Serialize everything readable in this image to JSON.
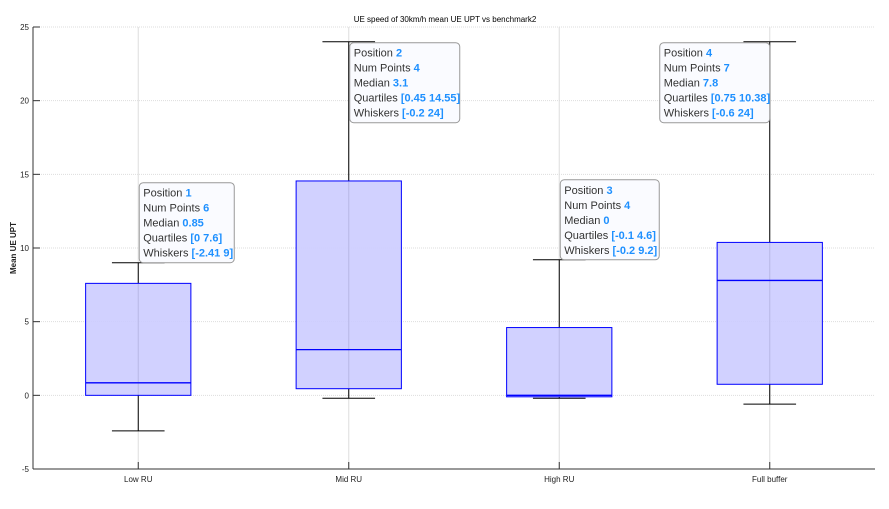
{
  "chart_data": {
    "type": "box",
    "title": "UE speed of 30km/h mean UE UPT vs benchmark2",
    "xlabel": "",
    "ylabel": "Mean UE UPT",
    "ylim": [
      -5,
      25
    ],
    "yticks": [
      "-5",
      "0",
      "5",
      "10",
      "15",
      "20",
      "25"
    ],
    "grid": true,
    "categories": [
      "Low RU",
      "Mid RU",
      "High RU",
      "Full buffer"
    ],
    "boxes": [
      {
        "position": 1,
        "num_points": 6,
        "median": 0.85,
        "q1": 0,
        "q3": 7.6,
        "whisker_low": -2.41,
        "whisker_high": 9,
        "tip": {
          "position": "1",
          "num_points": "6",
          "median": "0.85",
          "quartiles": "[0 7.6]",
          "whiskers": "[-2.41 9]"
        }
      },
      {
        "position": 2,
        "num_points": 4,
        "median": 3.1,
        "q1": 0.45,
        "q3": 14.55,
        "whisker_low": -0.2,
        "whisker_high": 24,
        "tip": {
          "position": "2",
          "num_points": "4",
          "median": "3.1",
          "quartiles": "[0.45 14.55]",
          "whiskers": "[-0.2 24]"
        }
      },
      {
        "position": 3,
        "num_points": 4,
        "median": 0,
        "q1": -0.1,
        "q3": 4.6,
        "whisker_low": -0.2,
        "whisker_high": 9.2,
        "tip": {
          "position": "3",
          "num_points": "4",
          "median": "0",
          "quartiles": "[-0.1 4.6]",
          "whiskers": "[-0.2 9.2]"
        }
      },
      {
        "position": 4,
        "num_points": 7,
        "median": 7.8,
        "q1": 0.75,
        "q3": 10.38,
        "whisker_low": -0.6,
        "whisker_high": 24,
        "tip": {
          "position": "4",
          "num_points": "7",
          "median": "7.8",
          "quartiles": "[0.75 10.38]",
          "whiskers": "[-0.6 24]"
        }
      }
    ],
    "tip_labels": {
      "position": "Position",
      "num_points": "Num Points",
      "median": "Median",
      "quartiles": "Quartiles",
      "whiskers": "Whiskers"
    },
    "colors": {
      "box_fill": "#ccccff",
      "box_edge": "#0000ff",
      "whisker": "#000000",
      "tip_value": "#1e90ff"
    }
  }
}
